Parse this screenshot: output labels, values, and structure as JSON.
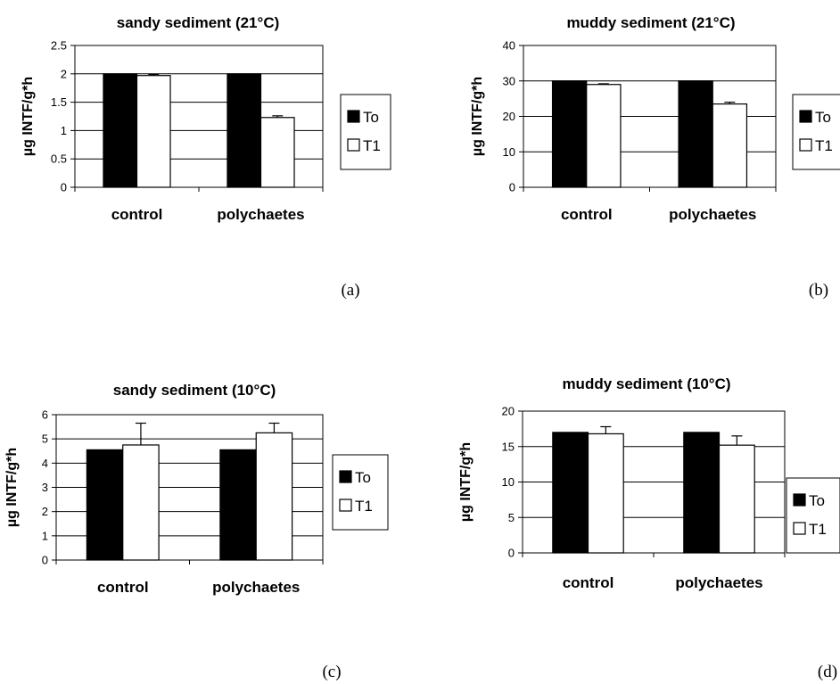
{
  "chart_data": [
    {
      "type": "bar",
      "title": "sandy sediment (21°C)",
      "ylabel": "µg INTF/g*h",
      "categories": [
        "control",
        "polychaetes"
      ],
      "series": [
        {
          "name": "To",
          "values": [
            2.0,
            2.0
          ],
          "errors": [
            0,
            0
          ]
        },
        {
          "name": "T1",
          "values": [
            1.97,
            1.23
          ],
          "errors": [
            0.02,
            0.03
          ]
        }
      ],
      "ylim": [
        0,
        2.5
      ],
      "yticks": [
        "0",
        "0.5",
        "1",
        "1.5",
        "2",
        "2.5"
      ],
      "ytick_values": [
        0,
        0.5,
        1,
        1.5,
        2,
        2.5
      ],
      "panel_label": "(a)",
      "grid": true,
      "legend": "right"
    },
    {
      "type": "bar",
      "title": "muddy sediment (21°C)",
      "ylabel": "µg INTF/g*h",
      "categories": [
        "control",
        "polychaetes"
      ],
      "series": [
        {
          "name": "To",
          "values": [
            30,
            30
          ],
          "errors": [
            0,
            0
          ]
        },
        {
          "name": "T1",
          "values": [
            29,
            23.5
          ],
          "errors": [
            0.2,
            0.5
          ]
        }
      ],
      "ylim": [
        0,
        40
      ],
      "yticks": [
        "0",
        "10",
        "20",
        "30",
        "40"
      ],
      "ytick_values": [
        0,
        10,
        20,
        30,
        40
      ],
      "panel_label": "(b)",
      "grid": true,
      "legend": "right"
    },
    {
      "type": "bar",
      "title": "sandy sediment (10°C)",
      "ylabel": "µg INTF/g*h",
      "categories": [
        "control",
        "polychaetes"
      ],
      "series": [
        {
          "name": "To",
          "values": [
            4.55,
            4.55
          ],
          "errors": [
            0,
            0
          ]
        },
        {
          "name": "T1",
          "values": [
            4.75,
            5.25
          ],
          "errors": [
            0.9,
            0.4
          ]
        }
      ],
      "ylim": [
        0,
        6
      ],
      "yticks": [
        "0",
        "1",
        "2",
        "3",
        "4",
        "5",
        "6"
      ],
      "ytick_values": [
        0,
        1,
        2,
        3,
        4,
        5,
        6
      ],
      "panel_label": "(c)",
      "grid": true,
      "legend": "right"
    },
    {
      "type": "bar",
      "title": "muddy sediment (10°C)",
      "ylabel": "µg INTF/g*h",
      "categories": [
        "control",
        "polychaetes"
      ],
      "series": [
        {
          "name": "To",
          "values": [
            17,
            17
          ],
          "errors": [
            0,
            0
          ]
        },
        {
          "name": "T1",
          "values": [
            16.8,
            15.2
          ],
          "errors": [
            1.0,
            1.3
          ]
        }
      ],
      "ylim": [
        0,
        20
      ],
      "yticks": [
        "0",
        "5",
        "10",
        "15",
        "20"
      ],
      "ytick_values": [
        0,
        5,
        10,
        15,
        20
      ],
      "panel_label": "(d)",
      "grid": true,
      "legend": "right"
    }
  ],
  "colors": {
    "To": "#000000",
    "T1": "#ffffff",
    "grid": "#000000",
    "axis": "#000000"
  }
}
